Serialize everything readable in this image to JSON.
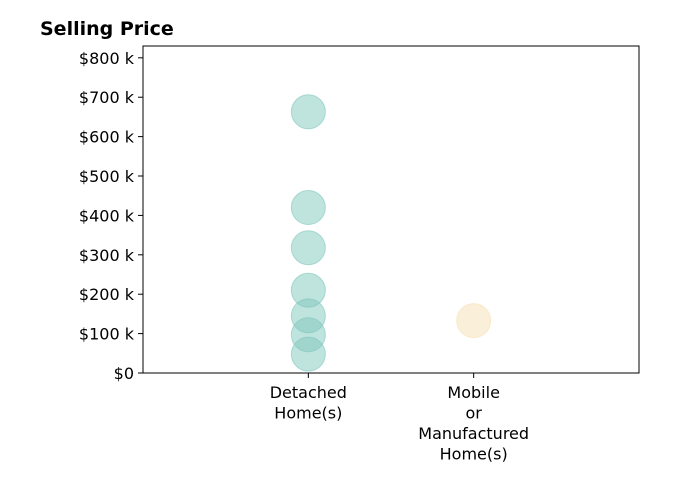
{
  "chart_data": {
    "type": "scatter",
    "title": "Selling Price",
    "xlabel": "",
    "ylabel": "",
    "categories": [
      [
        "Detached",
        "Home(s)"
      ],
      [
        "Mobile",
        "or",
        "Manufactured",
        "Home(s)"
      ]
    ],
    "ylim": [
      0,
      830000
    ],
    "y_ticks": [
      {
        "value": 0,
        "label": "$0"
      },
      {
        "value": 100000,
        "label": "$100 k"
      },
      {
        "value": 200000,
        "label": "$200 k"
      },
      {
        "value": 300000,
        "label": "$300 k"
      },
      {
        "value": 400000,
        "label": "$400 k"
      },
      {
        "value": 500000,
        "label": "$500 k"
      },
      {
        "value": 600000,
        "label": "$600 k"
      },
      {
        "value": 700000,
        "label": "$700 k"
      },
      {
        "value": 800000,
        "label": "$800 k"
      }
    ],
    "grid": false,
    "legend": "none",
    "series": [
      {
        "category_index": 0,
        "color": "#7fc7bc",
        "values": [
          663000,
          420000,
          318000,
          210000,
          145000,
          97000,
          48000
        ]
      },
      {
        "category_index": 1,
        "color": "#f6dfb3",
        "values": [
          133000
        ]
      }
    ]
  }
}
